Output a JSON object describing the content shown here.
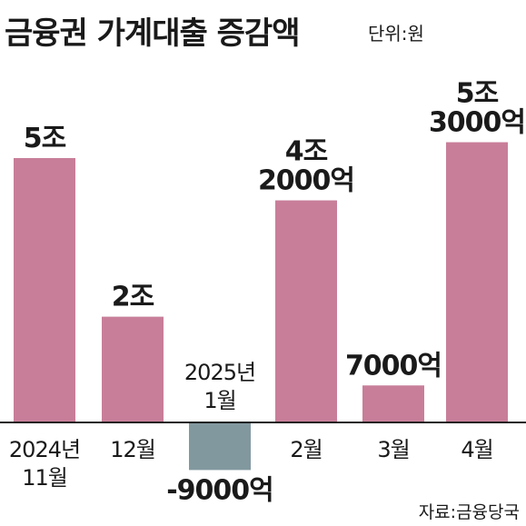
{
  "title": "금융권 가계대출 증감액",
  "unit_label": "단위:원",
  "source": "자료:금융당국",
  "colors": {
    "positive": "#c87e99",
    "negative": "#82989f",
    "baseline": "#222222"
  },
  "chart_data": {
    "type": "bar",
    "title": "금융권 가계대출 증감액",
    "unit": "원",
    "categories": [
      [
        "2024년",
        "11월"
      ],
      [
        "12월"
      ],
      [
        "2025년",
        "1월"
      ],
      [
        "2월"
      ],
      [
        "3월"
      ],
      [
        "4월"
      ]
    ],
    "values": [
      50000,
      20000,
      -9000,
      42000,
      7000,
      53000
    ],
    "value_unit": "억원",
    "data_labels": [
      [
        "5조"
      ],
      [
        "2조"
      ],
      [
        "-9000억"
      ],
      [
        "4조",
        "2000억"
      ],
      [
        "7000억"
      ],
      [
        "5조",
        "3000억"
      ]
    ]
  }
}
